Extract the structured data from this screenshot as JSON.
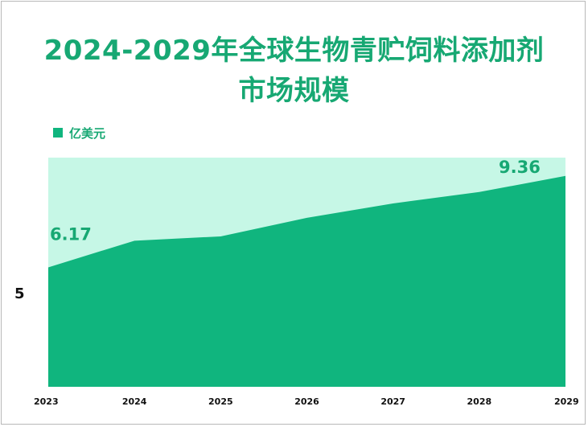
{
  "title_line1": "2024-2029年全球生物青贮饲料添加剂",
  "title_line2": "市场规模",
  "chart_data": {
    "type": "area",
    "categories": [
      "2023",
      "2024",
      "2025",
      "2026",
      "2027",
      "2028",
      "2029"
    ],
    "series": [
      {
        "name": "亿美元",
        "values": [
          6.17,
          7.1,
          7.25,
          7.9,
          8.4,
          8.8,
          9.36
        ]
      }
    ],
    "data_labels": {
      "first": "6.17",
      "last": "9.36"
    },
    "y_tick_label": "5",
    "ylim": [
      2.0,
      10.0
    ],
    "colors": {
      "area": "#10b57e",
      "background_band": "#c6f7e6",
      "title": "#17a873"
    },
    "legend_position": "top-left",
    "grid": false
  }
}
